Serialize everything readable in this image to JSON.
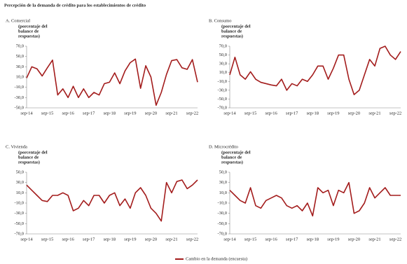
{
  "title": "Percepción de la demanda de crédito para los establecimientos de crédito",
  "legend": {
    "name": "Cambio en la demanda (encuesta)",
    "color": "#a31c1c"
  },
  "chart_data": [
    {
      "type": "line",
      "title": "A. Comercial",
      "y_label": [
        "(porcentaje del",
        "balance de",
        "respuestas)"
      ],
      "color": "#a31c1c",
      "categories": [
        "sep-14",
        null,
        null,
        null,
        "sep-15",
        null,
        null,
        null,
        "sep-16",
        null,
        null,
        null,
        "sep-17",
        null,
        null,
        null,
        "sep-18",
        null,
        null,
        null,
        "sep-19",
        null,
        null,
        null,
        "sep-20",
        null,
        null,
        null,
        "sep-21",
        null,
        null,
        null,
        "sep-22",
        null
      ],
      "values": [
        8,
        30,
        26,
        12,
        28,
        43,
        -25,
        -13,
        -30,
        -8,
        -30,
        -13,
        -30,
        -20,
        -25,
        -3,
        0,
        18,
        -3,
        22,
        38,
        45,
        -12,
        32,
        10,
        -45,
        -20,
        15,
        42,
        44,
        28,
        25,
        44,
        0
      ],
      "ylim": [
        -50,
        70
      ],
      "yticks": [
        {
          "value": 70,
          "label": "70,0"
        },
        {
          "value": 50,
          "label": "50,0"
        },
        {
          "value": 30,
          "label": "30,0"
        },
        {
          "value": 10,
          "label": "10,0"
        },
        {
          "value": -10,
          "label": "-10,0"
        },
        {
          "value": -30,
          "label": "-30,0"
        },
        {
          "value": -50,
          "label": "-50,0"
        }
      ]
    },
    {
      "type": "line",
      "title": "B. Consumo",
      "y_label": [
        "(porcentaje del",
        "balance de",
        "respuestas)"
      ],
      "color": "#a31c1c",
      "categories": [
        "sep-14",
        null,
        null,
        null,
        "sep-15",
        null,
        null,
        null,
        "sep-16",
        null,
        null,
        null,
        "sep-17",
        null,
        null,
        null,
        "sep-18",
        null,
        null,
        null,
        "sep-19",
        null,
        null,
        null,
        "sep-20",
        null,
        null,
        null,
        "sep-21",
        null,
        null,
        null,
        "sep-22",
        null
      ],
      "values": [
        5,
        45,
        5,
        -5,
        12,
        -5,
        -12,
        -15,
        -18,
        -20,
        -5,
        -30,
        -15,
        -20,
        -5,
        -10,
        5,
        25,
        25,
        -5,
        20,
        50,
        50,
        -5,
        -40,
        -30,
        5,
        40,
        25,
        65,
        70,
        50,
        40,
        58
      ],
      "ylim": [
        -70,
        70
      ],
      "yticks": [
        {
          "value": 70,
          "label": "70,0"
        },
        {
          "value": 50,
          "label": "50,0"
        },
        {
          "value": 30,
          "label": "30,0"
        },
        {
          "value": 10,
          "label": "10,0"
        },
        {
          "value": -10,
          "label": "-10,0"
        },
        {
          "value": -30,
          "label": "-30,0"
        },
        {
          "value": -50,
          "label": "-50,0"
        },
        {
          "value": -70,
          "label": "-70,0"
        }
      ]
    },
    {
      "type": "line",
      "title": "C. Vivienda",
      "y_label": [
        "(porcentaje del",
        "balance de",
        "respuestas)"
      ],
      "color": "#a31c1c",
      "categories": [
        "sep-14",
        null,
        null,
        null,
        "sep-15",
        null,
        null,
        null,
        "sep-16",
        null,
        null,
        null,
        "sep-17",
        null,
        null,
        null,
        "sep-18",
        null,
        null,
        null,
        "sep-19",
        null,
        null,
        null,
        "sep-20",
        null,
        null,
        null,
        "sep-21",
        null,
        null,
        null,
        "sep-22",
        null
      ],
      "values": [
        25,
        15,
        5,
        -5,
        -7,
        5,
        5,
        10,
        5,
        -25,
        -20,
        -5,
        -15,
        5,
        5,
        -10,
        5,
        10,
        -15,
        -2,
        -20,
        10,
        20,
        5,
        -20,
        -30,
        -45,
        30,
        10,
        32,
        35,
        18,
        25,
        35
      ],
      "ylim": [
        -70,
        50
      ],
      "yticks": [
        {
          "value": 50,
          "label": "50,0"
        },
        {
          "value": 30,
          "label": "30,0"
        },
        {
          "value": 10,
          "label": "10,0"
        },
        {
          "value": -10,
          "label": "-10,0"
        },
        {
          "value": -30,
          "label": "-30,0"
        },
        {
          "value": -50,
          "label": "-50,0"
        },
        {
          "value": -70,
          "label": "-70,0"
        }
      ]
    },
    {
      "type": "line",
      "title": "D. Microcrédito",
      "y_label": [
        "(porcentaje del",
        "balance de",
        "respuestas)"
      ],
      "color": "#a31c1c",
      "categories": [
        "sep-14",
        null,
        null,
        null,
        "sep-15",
        null,
        null,
        null,
        "sep-16",
        null,
        null,
        null,
        "sep-17",
        null,
        null,
        null,
        "sep-18",
        null,
        null,
        null,
        "sep-19",
        null,
        null,
        null,
        "sep-20",
        null,
        null,
        null,
        "sep-21",
        null,
        null,
        null,
        "sep-22",
        null
      ],
      "values": [
        15,
        5,
        -5,
        -10,
        20,
        -15,
        -20,
        -5,
        0,
        5,
        0,
        -15,
        -20,
        -15,
        -25,
        -10,
        -35,
        20,
        10,
        15,
        -15,
        15,
        10,
        30,
        -30,
        -25,
        -10,
        20,
        0,
        10,
        20,
        5,
        5,
        5
      ],
      "ylim": [
        -70,
        50
      ],
      "yticks": [
        {
          "value": 50,
          "label": "50,0"
        },
        {
          "value": 30,
          "label": "30,0"
        },
        {
          "value": 10,
          "label": "10,0"
        },
        {
          "value": -10,
          "label": "-10,0"
        },
        {
          "value": -30,
          "label": "-30,0"
        },
        {
          "value": -50,
          "label": "-50,0"
        },
        {
          "value": -70,
          "label": "-70,0"
        }
      ]
    }
  ]
}
